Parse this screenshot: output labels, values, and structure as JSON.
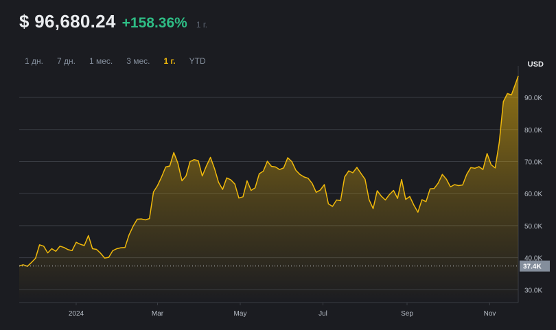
{
  "header": {
    "price": "$ 96,680.24",
    "change": "+158.36%",
    "period": "1 г."
  },
  "tabs": [
    {
      "label": "1 дн.",
      "active": false
    },
    {
      "label": "7 дн.",
      "active": false
    },
    {
      "label": "1 мес.",
      "active": false
    },
    {
      "label": "3 мес.",
      "active": false
    },
    {
      "label": "1 г.",
      "active": true
    },
    {
      "label": "YTD",
      "active": false
    }
  ],
  "colors": {
    "background": "#1b1c21",
    "line": "#f0b90b",
    "positive": "#2ebd85",
    "grid": "#3a3d44",
    "axis_text": "#b7bdc6"
  },
  "chart_data": {
    "type": "area",
    "ylabel": "USD",
    "ylim": [
      26000,
      99000
    ],
    "yticks": [
      30000,
      40000,
      50000,
      60000,
      70000,
      80000,
      90000
    ],
    "ytick_labels": [
      "30.0K",
      "40.0K",
      "50.0K",
      "60.0K",
      "70.0K",
      "80.0K",
      "90.0K"
    ],
    "xlim": [
      "2023-11-20",
      "2024-11-22"
    ],
    "xticks": [
      "2024-01-01",
      "2024-03-01",
      "2024-05-01",
      "2024-07-01",
      "2024-09-01",
      "2024-11-01"
    ],
    "xtick_labels": [
      "2024",
      "Mar",
      "May",
      "Jul",
      "Sep",
      "Nov"
    ],
    "baseline": {
      "value": 37400,
      "label": "37.4K"
    },
    "grid": true,
    "series": [
      {
        "x": [
          "2023-11-20",
          "2023-11-23",
          "2023-11-26",
          "2023-11-29",
          "2023-12-02",
          "2023-12-05",
          "2023-12-08",
          "2023-12-11",
          "2023-12-14",
          "2023-12-17",
          "2023-12-20",
          "2023-12-23",
          "2023-12-26",
          "2023-12-29",
          "2024-01-01",
          "2024-01-04",
          "2024-01-07",
          "2024-01-10",
          "2024-01-13",
          "2024-01-16",
          "2024-01-19",
          "2024-01-22",
          "2024-01-25",
          "2024-01-28",
          "2024-01-31",
          "2024-02-03",
          "2024-02-06",
          "2024-02-09",
          "2024-02-12",
          "2024-02-15",
          "2024-02-18",
          "2024-02-21",
          "2024-02-24",
          "2024-02-27",
          "2024-03-01",
          "2024-03-04",
          "2024-03-07",
          "2024-03-10",
          "2024-03-13",
          "2024-03-16",
          "2024-03-19",
          "2024-03-22",
          "2024-03-25",
          "2024-03-28",
          "2024-03-31",
          "2024-04-03",
          "2024-04-06",
          "2024-04-09",
          "2024-04-12",
          "2024-04-15",
          "2024-04-18",
          "2024-04-21",
          "2024-04-24",
          "2024-04-27",
          "2024-04-30",
          "2024-05-03",
          "2024-05-06",
          "2024-05-09",
          "2024-05-12",
          "2024-05-15",
          "2024-05-18",
          "2024-05-21",
          "2024-05-24",
          "2024-05-27",
          "2024-05-30",
          "2024-06-02",
          "2024-06-05",
          "2024-06-08",
          "2024-06-11",
          "2024-06-14",
          "2024-06-17",
          "2024-06-20",
          "2024-06-23",
          "2024-06-26",
          "2024-06-29",
          "2024-07-02",
          "2024-07-05",
          "2024-07-08",
          "2024-07-11",
          "2024-07-14",
          "2024-07-17",
          "2024-07-20",
          "2024-07-23",
          "2024-07-26",
          "2024-07-29",
          "2024-08-01",
          "2024-08-04",
          "2024-08-07",
          "2024-08-10",
          "2024-08-13",
          "2024-08-16",
          "2024-08-19",
          "2024-08-22",
          "2024-08-25",
          "2024-08-28",
          "2024-08-31",
          "2024-09-03",
          "2024-09-06",
          "2024-09-09",
          "2024-09-12",
          "2024-09-15",
          "2024-09-18",
          "2024-09-21",
          "2024-09-24",
          "2024-09-27",
          "2024-09-30",
          "2024-10-03",
          "2024-10-06",
          "2024-10-09",
          "2024-10-12",
          "2024-10-15",
          "2024-10-18",
          "2024-10-21",
          "2024-10-24",
          "2024-10-27",
          "2024-10-30",
          "2024-11-02",
          "2024-11-05",
          "2024-11-08",
          "2024-11-11",
          "2024-11-14",
          "2024-11-17",
          "2024-11-20",
          "2024-11-22"
        ],
        "values": [
          37400,
          37800,
          37300,
          38500,
          39800,
          44000,
          43600,
          41500,
          42800,
          42000,
          43600,
          43200,
          42500,
          42200,
          44800,
          44200,
          43800,
          46900,
          42800,
          42600,
          41400,
          39900,
          40100,
          42200,
          42800,
          43100,
          43200,
          47100,
          49800,
          52000,
          52100,
          51800,
          52200,
          60500,
          62500,
          65200,
          68300,
          68600,
          72800,
          69500,
          64000,
          65500,
          70000,
          70600,
          70300,
          65500,
          68600,
          71300,
          67800,
          63500,
          61300,
          64900,
          64300,
          63000,
          58600,
          59000,
          64000,
          61000,
          61800,
          66200,
          67000,
          70100,
          68500,
          68300,
          67500,
          68000,
          71200,
          70000,
          67300,
          66000,
          65200,
          64800,
          63200,
          60400,
          61100,
          62800,
          56800,
          56000,
          58000,
          57800,
          65200,
          67100,
          66500,
          68200,
          66300,
          64500,
          58100,
          55300,
          60900,
          59200,
          58000,
          59700,
          61000,
          58500,
          64400,
          58200,
          59100,
          56400,
          54200,
          58100,
          57500,
          61500,
          61600,
          63300,
          66000,
          64500,
          62100,
          62800,
          62500,
          62700,
          66000,
          68100,
          67900,
          68400,
          67500,
          72500,
          69000,
          68000,
          75900,
          88700,
          91200,
          90800,
          94300,
          96680
        ]
      }
    ]
  }
}
